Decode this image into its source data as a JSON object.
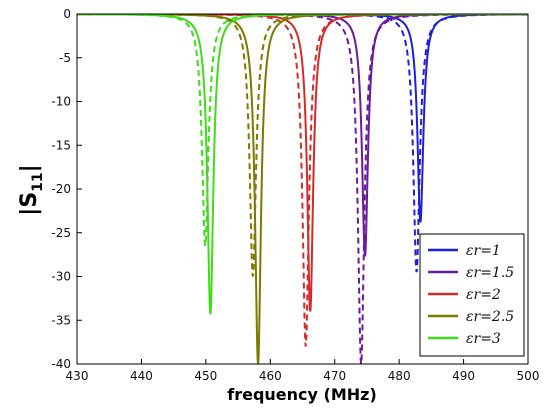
{
  "chart_data": {
    "type": "line",
    "xlabel": "frequency (MHz)",
    "ylabel": "|S11|",
    "xlim": [
      430,
      500
    ],
    "ylim": [
      -40,
      0
    ],
    "xticks": [
      430,
      440,
      450,
      460,
      470,
      480,
      490,
      500
    ],
    "yticks": [
      0,
      -5,
      -10,
      -15,
      -20,
      -25,
      -30,
      -35,
      -40
    ],
    "grid": false,
    "legend_position": "lower-right",
    "line_styles": {
      "solid": "simulated",
      "dashed": "measured"
    },
    "series": [
      {
        "name": "εr=1",
        "color": "#1f1fd6",
        "solid": {
          "center": 483.3,
          "depth": -23.8
        },
        "dashed": {
          "center": 482.7,
          "depth": -29.5
        }
      },
      {
        "name": "εr=1.5",
        "color": "#6a1a9a",
        "solid": {
          "center": 474.7,
          "depth": -27.7
        },
        "dashed": {
          "center": 474.1,
          "depth": -40.0
        }
      },
      {
        "name": "εr=2",
        "color": "#d42a2a",
        "solid": {
          "center": 466.2,
          "depth": -34.0
        },
        "dashed": {
          "center": 465.5,
          "depth": -38.0
        }
      },
      {
        "name": "εr=2.5",
        "color": "#7a7a00",
        "solid": {
          "center": 458.1,
          "depth": -40.0
        },
        "dashed": {
          "center": 457.3,
          "depth": -30.0
        }
      },
      {
        "name": "εr=3",
        "color": "#3fdc1a",
        "solid": {
          "center": 450.7,
          "depth": -34.3
        },
        "dashed": {
          "center": 449.9,
          "depth": -26.5
        }
      }
    ]
  },
  "legend": {
    "labels": [
      "εr=1",
      "εr=1.5",
      "εr=2",
      "εr=2.5",
      "εr=3"
    ]
  }
}
